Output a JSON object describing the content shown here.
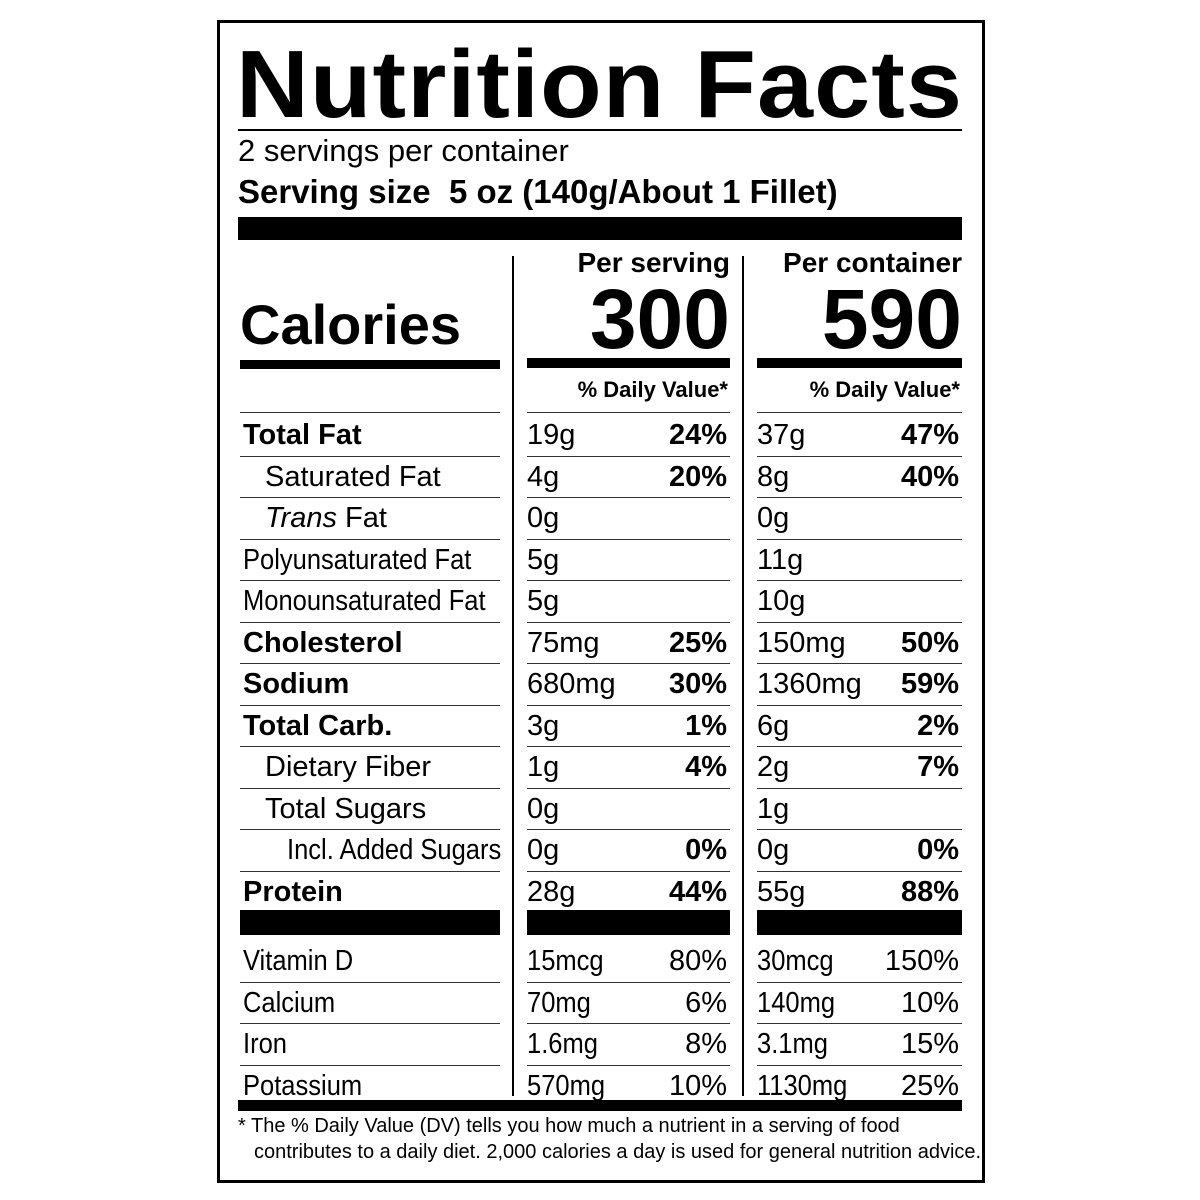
{
  "header": {
    "title": "Nutrition Facts",
    "servings": "2 servings per container",
    "serving_size_label": "Serving size",
    "serving_size_value": "5 oz (140g/About 1 Fillet)"
  },
  "columns": {
    "serving": "Per serving",
    "container": "Per container"
  },
  "calories": {
    "label": "Calories",
    "serving": "300",
    "container": "590"
  },
  "daily_value_heading": "% Daily Value*",
  "rows": [
    {
      "name": "Total Fat",
      "serving_amount": "19g",
      "serving_dv": "24%",
      "container_amount": "37g",
      "container_dv": "47%"
    },
    {
      "name": "Saturated Fat",
      "serving_amount": "4g",
      "serving_dv": "20%",
      "container_amount": "8g",
      "container_dv": "40%"
    },
    {
      "name_italic": "Trans",
      "name": "Fat",
      "serving_amount": "0g",
      "container_amount": "0g"
    },
    {
      "name": "Polyunsaturated Fat",
      "serving_amount": "5g",
      "container_amount": "11g"
    },
    {
      "name": "Monounsaturated Fat",
      "serving_amount": "5g",
      "container_amount": "10g"
    },
    {
      "name": "Cholesterol",
      "serving_amount": "75mg",
      "serving_dv": "25%",
      "container_amount": "150mg",
      "container_dv": "50%"
    },
    {
      "name": "Sodium",
      "serving_amount": "680mg",
      "serving_dv": "30%",
      "container_amount": "1360mg",
      "container_dv": "59%"
    },
    {
      "name": "Total Carb.",
      "serving_amount": "3g",
      "serving_dv": "1%",
      "container_amount": "6g",
      "container_dv": "2%"
    },
    {
      "name": "Dietary Fiber",
      "serving_amount": "1g",
      "serving_dv": "4%",
      "container_amount": "2g",
      "container_dv": "7%"
    },
    {
      "name": "Total Sugars",
      "serving_amount": "0g",
      "container_amount": "1g"
    },
    {
      "name": "Incl. Added Sugars",
      "serving_amount": "0g",
      "serving_dv": "0%",
      "container_amount": "0g",
      "container_dv": "0%"
    },
    {
      "name": "Protein",
      "serving_amount": "28g",
      "serving_dv": "44%",
      "container_amount": "55g",
      "container_dv": "88%"
    }
  ],
  "vitamins": [
    {
      "name": "Vitamin D",
      "serving_amount": "15mcg",
      "serving_dv": "80%",
      "container_amount": "30mcg",
      "container_dv": "150%"
    },
    {
      "name": "Calcium",
      "serving_amount": "70mg",
      "serving_dv": "6%",
      "container_amount": "140mg",
      "container_dv": "10%"
    },
    {
      "name": "Iron",
      "serving_amount": "1.6mg",
      "serving_dv": "8%",
      "container_amount": "3.1mg",
      "container_dv": "15%"
    },
    {
      "name": "Potassium",
      "serving_amount": "570mg",
      "serving_dv": "10%",
      "container_amount": "1130mg",
      "container_dv": "25%"
    }
  ],
  "footnote": [
    "* The % Daily Value (DV) tells you how much a nutrient in a serving of food",
    "contributes to a daily diet. 2,000 calories a day is used for general nutrition advice."
  ]
}
